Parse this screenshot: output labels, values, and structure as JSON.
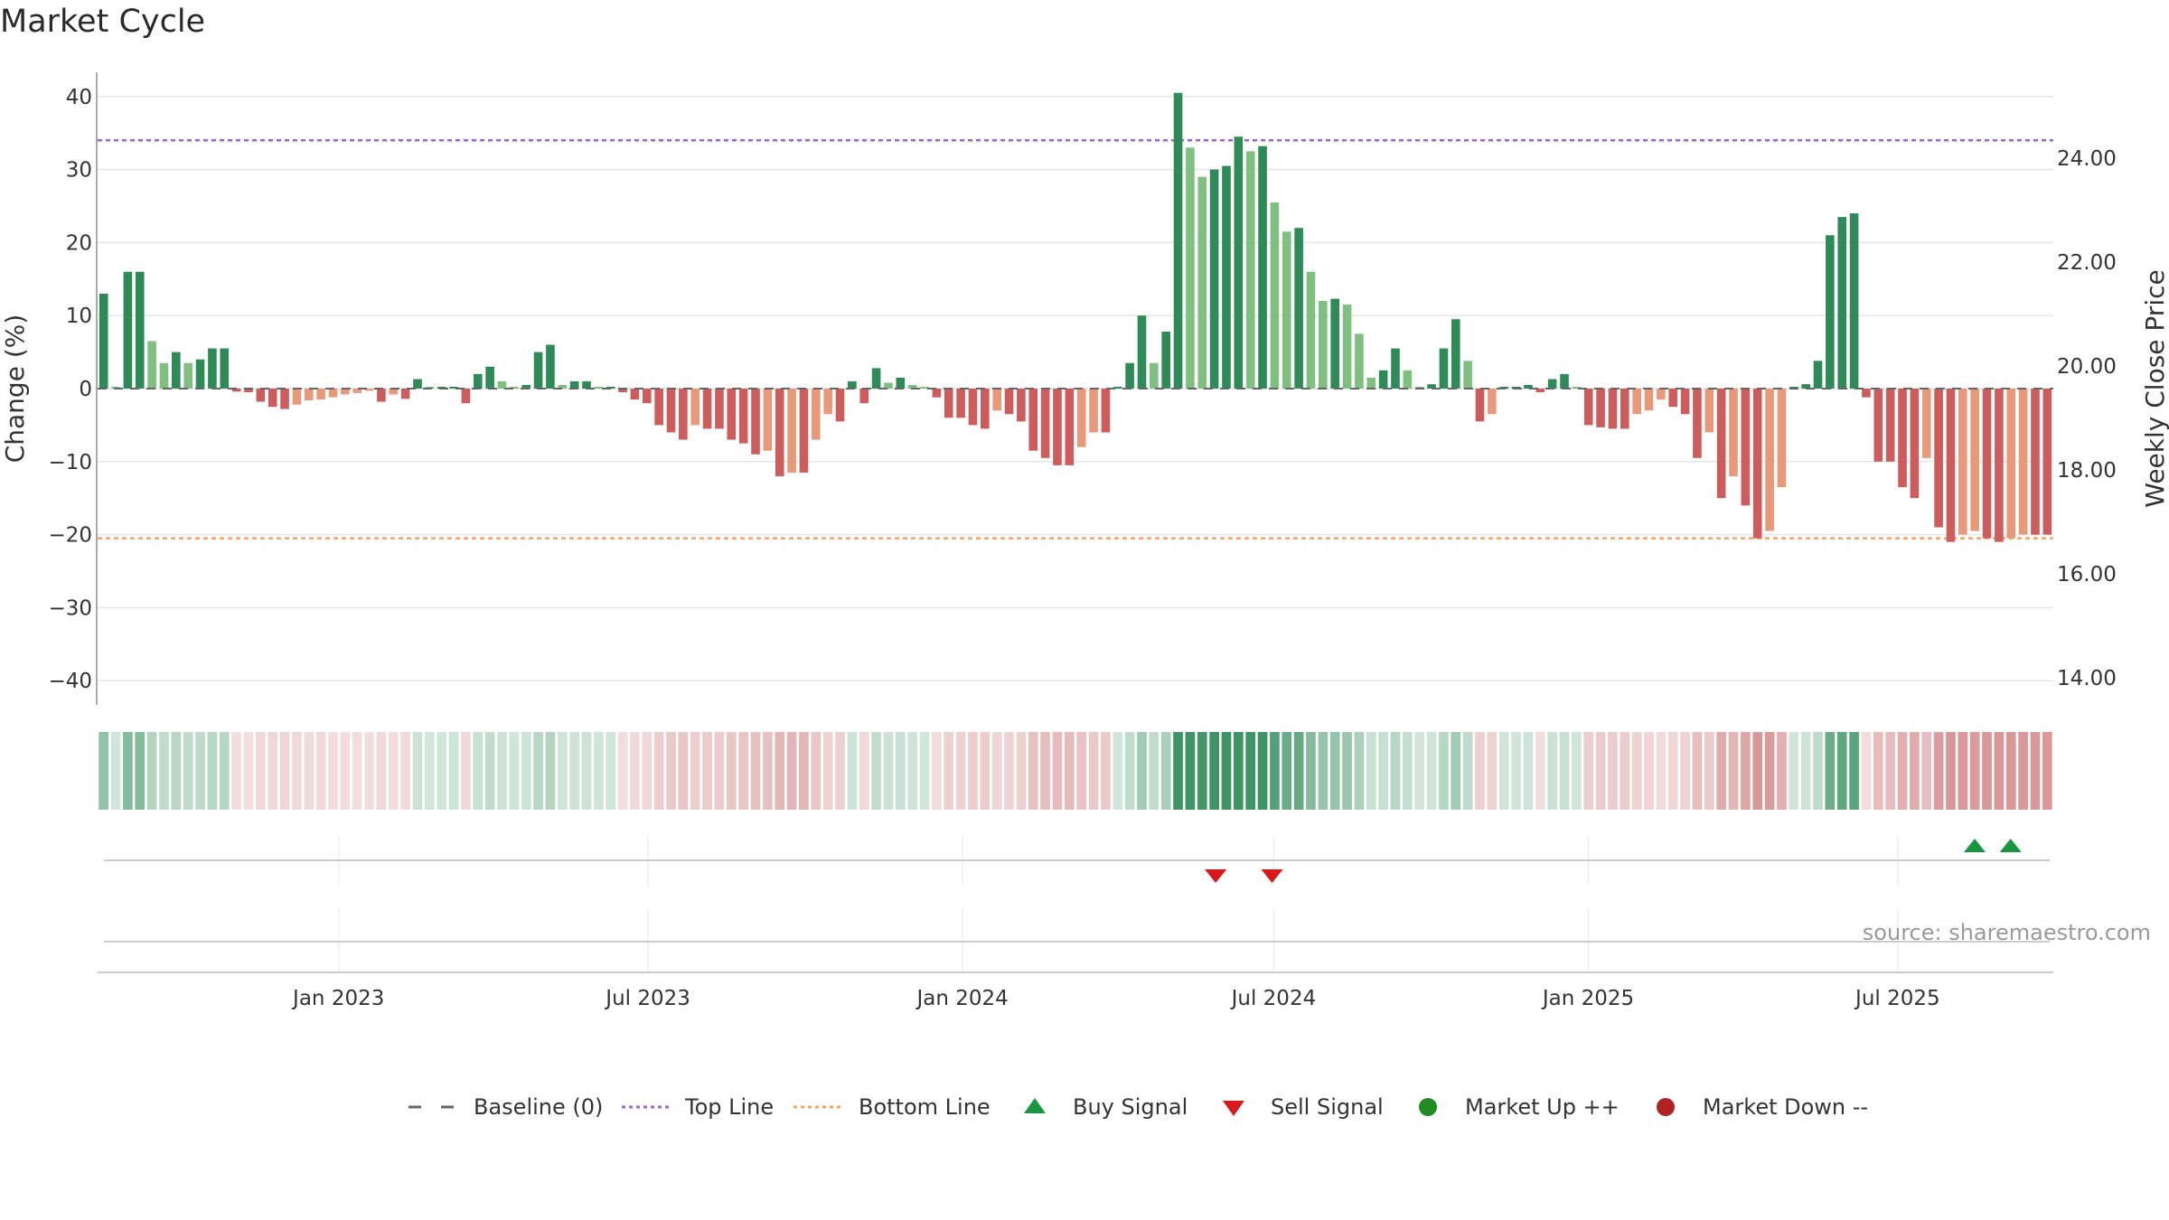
{
  "chart_data": {
    "type": "bar",
    "title": "Market Cycle",
    "ylabel": "Change (%)",
    "y2label": "Weekly Close Price",
    "ylim": [
      -43,
      43
    ],
    "y2lim": [
      13.5,
      25.4
    ],
    "yticks": [
      "40",
      "30",
      "20",
      "10",
      "0",
      "−10",
      "−20",
      "−30",
      "−40"
    ],
    "yticks_values": [
      40,
      30,
      20,
      10,
      0,
      -10,
      -20,
      -30,
      -40
    ],
    "y2ticks": [
      "24.00",
      "22.00",
      "20.00",
      "18.00",
      "16.00",
      "14.00"
    ],
    "y2ticks_values": [
      24,
      22,
      20,
      18,
      16,
      14
    ],
    "xticks": [
      "Jan 2023",
      "Jul 2023",
      "Jan 2024",
      "Jul 2024",
      "Jan 2025",
      "Jul 2025"
    ],
    "xticks_dates": [
      "2023-01-01",
      "2023-07-01",
      "2024-01-01",
      "2024-07-01",
      "2025-01-01",
      "2025-07-01"
    ],
    "start_date": "2022-08-13",
    "end_date": "2025-09-30",
    "top_line": 34,
    "bottom_line": -20.5,
    "grid": true,
    "legend_position": "bottom-center",
    "source": "source: sharemaestro.com",
    "values": [
      13,
      0,
      16,
      16,
      6.5,
      3.5,
      5,
      3.5,
      4,
      5.5,
      5.5,
      -0.4,
      -0.5,
      -1.8,
      -2.5,
      -2.8,
      -2.2,
      -1.6,
      -1.5,
      -1.2,
      -0.8,
      -0.6,
      -0.3,
      -1.8,
      -0.8,
      -1.4,
      1.3,
      0,
      0,
      0,
      -2,
      2,
      3,
      1,
      0,
      0.5,
      5,
      6,
      0.5,
      1,
      1,
      0,
      0,
      -0.5,
      -1.5,
      -2,
      -5,
      -6,
      -7,
      -5,
      -5.5,
      -5.5,
      -7,
      -7.5,
      -9,
      -8.5,
      -12,
      -11.5,
      -11.5,
      -7,
      -3.5,
      -4.5,
      1,
      -2,
      2.8,
      0.8,
      1.5,
      0.5,
      0,
      -1.2,
      -4,
      -4,
      -5,
      -5.5,
      -3,
      -3.5,
      -4.5,
      -8.5,
      -9.5,
      -10.5,
      -10.5,
      -8,
      -6,
      -6,
      0,
      3.5,
      10,
      3.5,
      7.8,
      40.5,
      33,
      29,
      30,
      30.5,
      34.5,
      32.5,
      33.2,
      25.5,
      21.5,
      22,
      16,
      12,
      12.3,
      11.5,
      7.5,
      1.5,
      2.5,
      5.5,
      2.5,
      0,
      0.6,
      5.5,
      9.5,
      3.8,
      -4.5,
      -3.5,
      0,
      0,
      0.5,
      -0.5,
      1.3,
      2,
      0,
      -5,
      -5.3,
      -5.5,
      -5.5,
      -3.5,
      -3,
      -1.5,
      -2.5,
      -3.5,
      -9.5,
      -6,
      -15,
      -12,
      -16,
      -20.5,
      -19.5,
      -13.5,
      0,
      0.6,
      3.8,
      21,
      23.5,
      24,
      -1.2,
      -10,
      -10,
      -13.5,
      -15,
      -9.5,
      -19,
      -21,
      -20,
      -19.5,
      -20.5,
      -21,
      -20.5,
      -20,
      -20,
      -20
    ],
    "buy_signals": [
      "2025-08-15",
      "2025-09-05"
    ],
    "sell_signals": [
      "2024-05-28",
      "2024-06-30"
    ],
    "colors": {
      "up_strong": "#2e8b57",
      "up_light": "#7fbf7f",
      "down_strong": "#cd5c5c",
      "down_light": "#e8997a",
      "top_line": "#9966cc",
      "bottom_line": "#f4a460",
      "buy": "#1a9641",
      "sell": "#d7191c",
      "market_up": "#228b22",
      "market_down": "#b22222",
      "baseline": "#666666"
    }
  },
  "legend": [
    {
      "label": "Baseline (0)",
      "icon": "dash-line-icon"
    },
    {
      "label": "Top Line",
      "icon": "dotted-line-icon"
    },
    {
      "label": "Bottom Line",
      "icon": "dotted-line-icon"
    },
    {
      "label": "Buy Signal",
      "icon": "triangle-up-icon"
    },
    {
      "label": "Sell Signal",
      "icon": "triangle-down-icon"
    },
    {
      "label": "Market Up ++",
      "icon": "circle-icon"
    },
    {
      "label": "Market Down --",
      "icon": "circle-icon"
    }
  ]
}
